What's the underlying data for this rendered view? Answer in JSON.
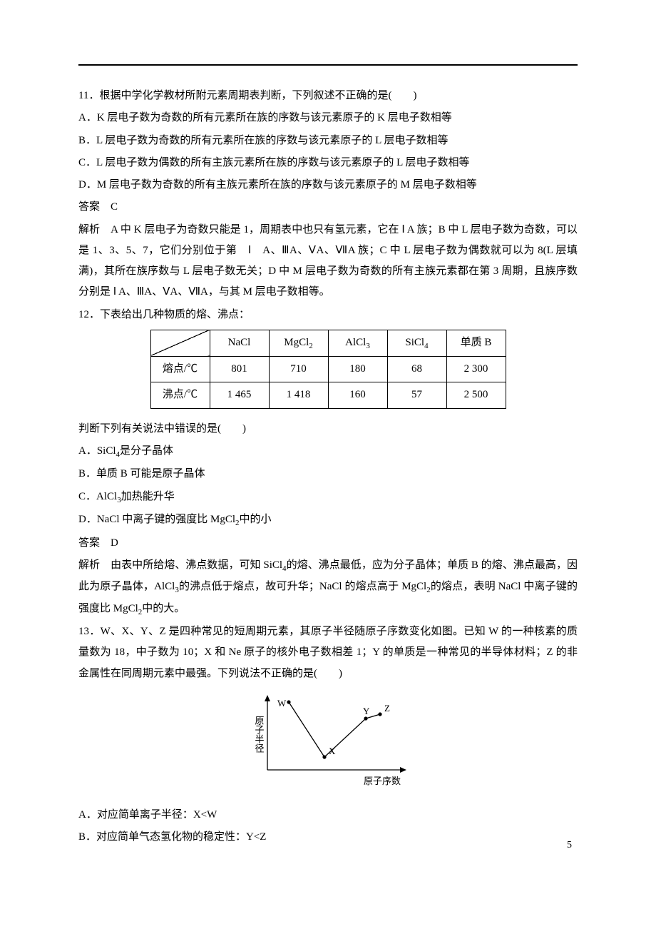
{
  "q11": {
    "stem": "11．根据中学化学教材所附元素周期表判断，下列叙述不正确的是(　　)",
    "optA": "A．K 层电子数为奇数的所有元素所在族的序数与该元素原子的 K 层电子数相等",
    "optB": "B．L 层电子数为奇数的所有元素所在族的序数与该元素原子的 L 层电子数相等",
    "optC": "C．L 层电子数为偶数的所有主族元素所在族的序数与该元素原子的 L 层电子数相等",
    "optD": "D．M 层电子数为奇数的所有主族元素所在族的序数与该元素原子的 M 层电子数相等",
    "answer": "答案　C",
    "explain": "解析　A 中 K 层电子为奇数只能是 1，周期表中也只有氢元素，它在 Ⅰ A 族；B 中 L 层电子数为奇数，可以是 1、3、5、7，它们分别位于第　Ⅰ　A、ⅢA、ⅤA、ⅦA 族；C 中 L 层电子数为偶数就可以为 8(L 层填满)，其所在族序数与 L 层电子数无关；D 中 M 层电子数为奇数的所有主族元素都在第 3 周期，且族序数分别是 Ⅰ A、ⅢA、ⅤA、ⅦA，与其 M 层电子数相等。"
  },
  "q12": {
    "stem": "12．下表给出几种物质的熔、沸点：",
    "table": {
      "col1": "NaCl",
      "col2": "MgCl",
      "col2_sub": "2",
      "col3": "AlCl",
      "col3_sub": "3",
      "col4": "SiCl",
      "col4_sub": "4",
      "col5": "单质 B",
      "row1_label": "熔点/℃",
      "row1": [
        "801",
        "710",
        "180",
        "68",
        "2 300"
      ],
      "row2_label": "沸点/℃",
      "row2": [
        "1 465",
        "1 418",
        "160",
        "57",
        "2 500"
      ]
    },
    "post": "判断下列有关说法中错误的是(　　)",
    "optA_pre": "A．SiCl",
    "optA_sub": "4",
    "optA_post": "是分子晶体",
    "optB": "B．单质 B 可能是原子晶体",
    "optC_pre": "C．AlCl",
    "optC_sub": "3",
    "optC_post": "加热能升华",
    "optD_pre": "D．NaCl 中离子键的强度比 MgCl",
    "optD_sub": "2",
    "optD_post": "中的小",
    "answer": "答案　D",
    "explain_pre": "解析　由表中所给熔、沸点数据，可知 SiCl",
    "explain_sub1": "4",
    "explain_mid1": "的熔、沸点最低，应为分子晶体；单质 B 的熔、沸点最高，因此为原子晶体，AlCl",
    "explain_sub2": "3",
    "explain_mid2": "的沸点低于熔点，故可升华；NaCl 的熔点高于 MgCl",
    "explain_sub3": "2",
    "explain_mid3": "的熔点，表明 NaCl 中离子键的强度比 MgCl",
    "explain_sub4": "2",
    "explain_post": "中的大。"
  },
  "q13": {
    "stem": "13．W、X、Y、Z 是四种常见的短周期元素，其原子半径随原子序数变化如图。已知 W 的一种核素的质量数为 18，中子数为 10；X 和 Ne 原子的核外电子数相差 1；Y 的单质是一种常见的半导体材料；Z 的非金属性在同周期元素中最强。下列说法不正确的是(　　)",
    "chart": {
      "y_axis": "原子半径",
      "x_axis": "原子序数",
      "labels": {
        "W": "W",
        "X": "X",
        "Y": "Y",
        "Z": "Z"
      },
      "points": {
        "W": [
          30,
          95
        ],
        "X": [
          80,
          18
        ],
        "Y": [
          138,
          72
        ],
        "Z": [
          158,
          78
        ]
      },
      "axis_color": "#000000",
      "line_color": "#000000",
      "point_fill": "#000000",
      "font_size_axis": 13,
      "font_size_pt": 13
    },
    "optA": "A．对应简单离子半径：X<W",
    "optB": "B．对应简单气态氢化物的稳定性：Y<Z"
  },
  "page_number": "5"
}
